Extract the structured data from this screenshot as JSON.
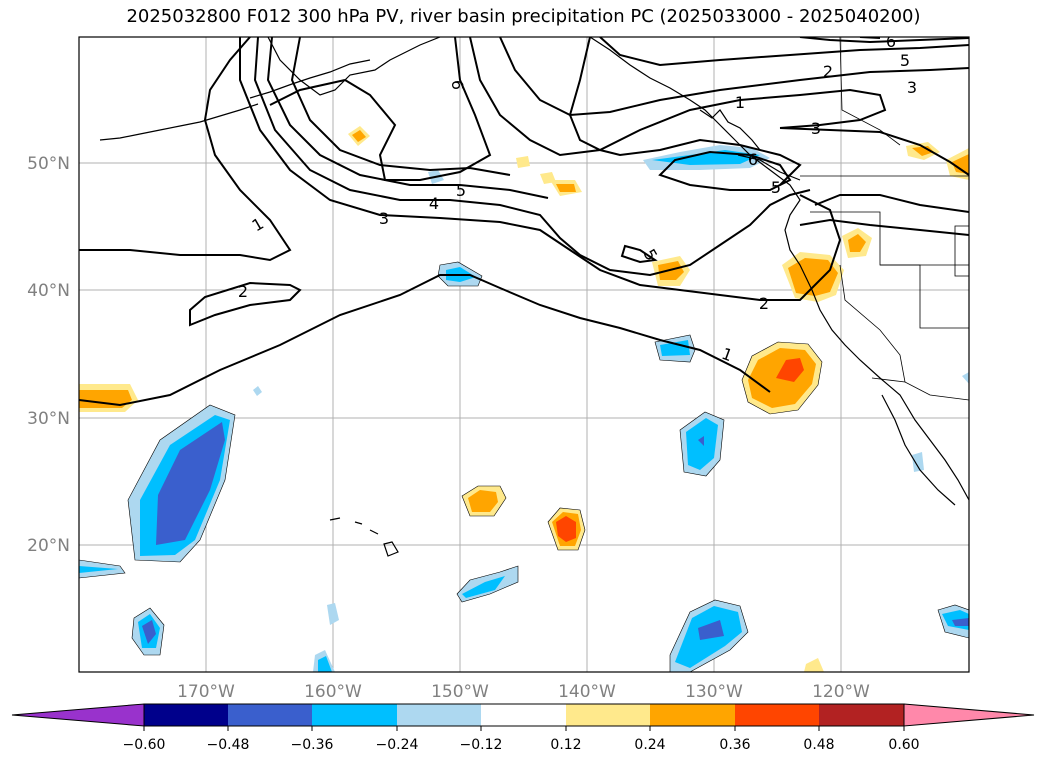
{
  "title": "2025032800 F012 300 hPa PV, river basin precipitation PC (2025033000 - 2025040200)",
  "map": {
    "lon_range": [
      -180,
      -110
    ],
    "lat_range": [
      10,
      60
    ],
    "lon_ticks": [
      "170°W",
      "160°W",
      "150°W",
      "140°W",
      "130°W",
      "120°W"
    ],
    "lat_ticks": [
      "50°N",
      "40°N",
      "30°N",
      "20°N"
    ],
    "grid": true
  },
  "contour_labels": [
    "1",
    "1",
    "1",
    "2",
    "2",
    "2",
    "3",
    "3",
    "3",
    "4",
    "5",
    "5",
    "5",
    "5",
    "6",
    "6",
    "6"
  ],
  "colorbar": {
    "ticks": [
      "−0.60",
      "−0.48",
      "−0.36",
      "−0.24",
      "−0.12",
      "0.12",
      "0.24",
      "0.36",
      "0.48",
      "0.60"
    ],
    "colors": [
      "#9932cc",
      "#00008b",
      "#3a5fcd",
      "#00bfff",
      "#add8f0",
      "#ffffff",
      "#ffe98c",
      "#ffa500",
      "#ff4500",
      "#b22222",
      "#ff88aa"
    ],
    "extend": "both"
  }
}
